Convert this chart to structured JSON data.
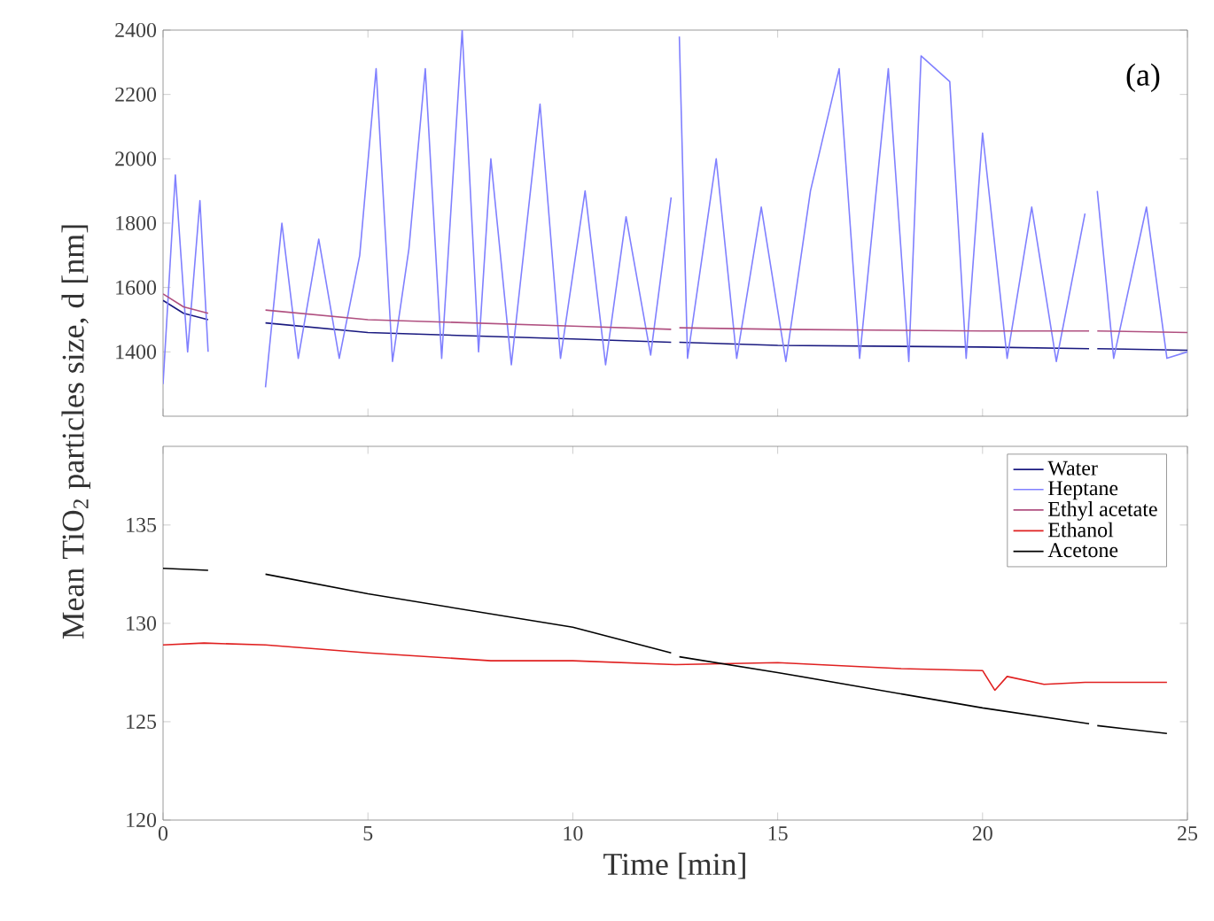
{
  "chart_data": [
    {
      "type": "line",
      "annotations": [
        "(a)"
      ],
      "xlim": [
        0,
        25
      ],
      "xticks": [
        0,
        5,
        10,
        15,
        20,
        25
      ],
      "ylim": [
        1200,
        2400
      ],
      "yticks": [
        1400,
        1600,
        1800,
        2000,
        2200,
        2400
      ],
      "tick_labels": "y",
      "series": [
        {
          "name": "Water",
          "color": "#1a1a80",
          "x": [
            0,
            0.5,
            1.1,
            1.8,
            2.5,
            5,
            10,
            12.4,
            12.5,
            12.6,
            15,
            20,
            22.6,
            22.65,
            22.8,
            25
          ],
          "values": [
            1560,
            1520,
            1500,
            null,
            1490,
            1460,
            1440,
            1430,
            null,
            1430,
            1420,
            1415,
            1410,
            null,
            1410,
            1405
          ]
        },
        {
          "name": "Heptane",
          "color": "#8080ff",
          "x": [
            0,
            0.3,
            0.6,
            0.9,
            1.1,
            1.8,
            2.5,
            2.9,
            3.3,
            3.8,
            4.3,
            4.8,
            5.2,
            5.6,
            6.0,
            6.4,
            6.8,
            7.3,
            7.7,
            8.0,
            8.5,
            9.2,
            9.7,
            10.3,
            10.8,
            11.3,
            11.9,
            12.4,
            12.5,
            12.6,
            12.8,
            13.5,
            14.0,
            14.6,
            15.2,
            15.8,
            16.5,
            17.0,
            17.7,
            18.2,
            18.5,
            19.2,
            19.6,
            20.0,
            20.6,
            21.2,
            21.8,
            22.5,
            22.65,
            22.8,
            23.2,
            24.0,
            24.5,
            25.0
          ],
          "values": [
            1300,
            1950,
            1400,
            1870,
            1400,
            null,
            1290,
            1800,
            1380,
            1750,
            1380,
            1700,
            2280,
            1370,
            1720,
            2280,
            1380,
            2400,
            1400,
            2000,
            1360,
            2170,
            1380,
            1900,
            1360,
            1820,
            1390,
            1880,
            null,
            2380,
            1380,
            2000,
            1380,
            1850,
            1370,
            1900,
            2280,
            1380,
            2280,
            1370,
            2320,
            2240,
            1380,
            2080,
            1380,
            1850,
            1370,
            1830,
            null,
            1900,
            1380,
            1850,
            1380,
            1400
          ]
        },
        {
          "name": "Ethyl acetate",
          "color": "#b05080",
          "x": [
            0,
            0.5,
            1.1,
            1.8,
            2.5,
            5,
            10,
            12.4,
            12.5,
            12.6,
            15,
            20,
            22.6,
            22.65,
            22.8,
            25
          ],
          "values": [
            1580,
            1540,
            1520,
            null,
            1530,
            1500,
            1480,
            1470,
            null,
            1475,
            1470,
            1465,
            1465,
            null,
            1465,
            1460
          ]
        }
      ]
    },
    {
      "type": "line",
      "xlabel": "Time [min]",
      "ylabel": "Mean TiO$_{2}$ particles size, d [nm]",
      "xlim": [
        0,
        25
      ],
      "xticks": [
        0,
        5,
        10,
        15,
        20,
        25
      ],
      "ylim": [
        120,
        139
      ],
      "yticks": [
        120,
        125,
        130,
        135
      ],
      "legend": "top right",
      "series": [
        {
          "name": "Ethanol",
          "color": "#e02020",
          "x": [
            0,
            1,
            2.5,
            5,
            8,
            10,
            12.5,
            15,
            18,
            20,
            20.3,
            20.6,
            21.5,
            22.5,
            24.5
          ],
          "values": [
            128.9,
            129.0,
            128.9,
            128.5,
            128.1,
            128.1,
            127.9,
            128.0,
            127.7,
            127.6,
            126.6,
            127.3,
            126.9,
            127.0,
            127.0
          ]
        },
        {
          "name": "Acetone",
          "color": "#000000",
          "x": [
            0,
            1.1,
            1.8,
            2.5,
            5,
            10,
            12.4,
            12.5,
            12.6,
            15,
            20,
            22.6,
            22.65,
            22.8,
            24.5
          ],
          "values": [
            132.8,
            132.7,
            null,
            132.5,
            131.5,
            129.8,
            128.5,
            null,
            128.3,
            127.5,
            125.7,
            124.9,
            null,
            124.8,
            124.4
          ]
        }
      ]
    }
  ]
}
